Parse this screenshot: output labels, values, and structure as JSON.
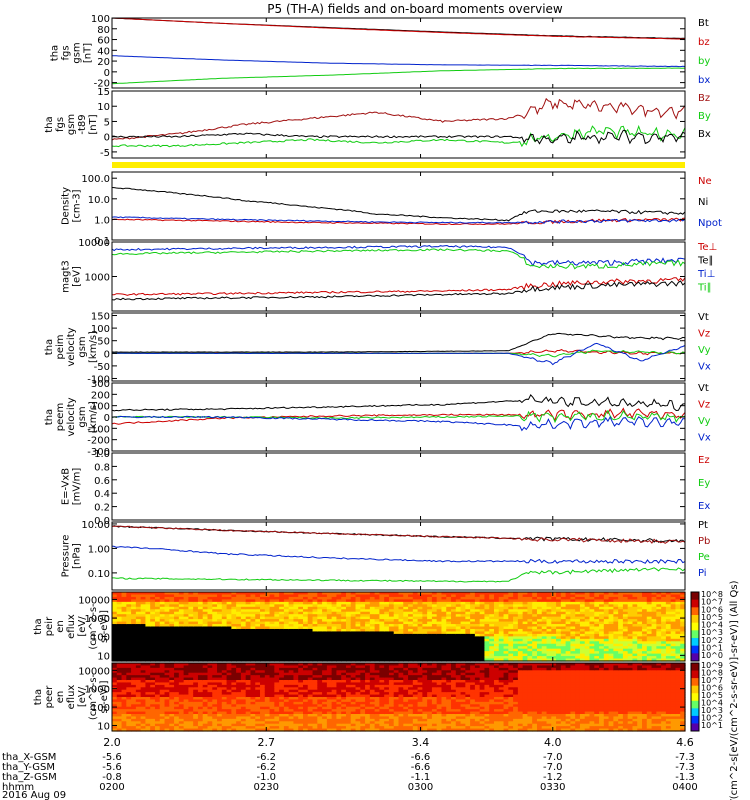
{
  "title": "P5 (TH-A) fields and on-board moments overview",
  "colors": {
    "black": "#000000",
    "red": "#cc0000",
    "darkred": "#a01010",
    "green": "#11cc11",
    "blue": "#0022cc",
    "yellow": "#ffee00"
  },
  "chart_data": [
    {
      "type": "line",
      "id": "fgs-gsm",
      "ylabel": [
        "tha",
        "fgs",
        "gsm",
        "[nT]"
      ],
      "ylim": [
        -30,
        100
      ],
      "yticks": [
        "100",
        "80",
        "60",
        "40",
        "20",
        "0",
        "-20"
      ],
      "yticks_values": [
        100,
        80,
        60,
        40,
        20,
        0,
        -20
      ],
      "x": [
        2.0,
        2.5,
        3.0,
        3.5,
        4.0,
        4.6
      ],
      "series": [
        {
          "name": "Bt",
          "color": "black",
          "values": [
            100,
            90,
            82,
            74,
            67,
            62
          ]
        },
        {
          "name": "bz",
          "color": "red",
          "values": [
            100,
            90,
            81,
            73,
            66,
            61
          ]
        },
        {
          "name": "by",
          "color": "green",
          "values": [
            -22,
            -12,
            -6,
            2,
            6,
            7
          ]
        },
        {
          "name": "bx",
          "color": "blue",
          "values": [
            30,
            22,
            16,
            13,
            12,
            10
          ]
        }
      ]
    },
    {
      "type": "line",
      "id": "fgs-gsm-t89",
      "ylabel": [
        "tha",
        "fgs",
        "gsm",
        "-t89",
        "[nT]"
      ],
      "ylim": [
        -7,
        15
      ],
      "yticks": [
        "15",
        "10",
        "5",
        "0",
        "-5"
      ],
      "yticks_values": [
        15,
        10,
        5,
        0,
        -5
      ],
      "x": [
        2.0,
        2.3,
        2.6,
        2.9,
        3.2,
        3.5,
        3.8,
        4.0,
        4.2,
        4.4,
        4.6
      ],
      "series": [
        {
          "name": "Bz",
          "color": "darkred",
          "values": [
            -1,
            1,
            4,
            6,
            8,
            5,
            6,
            11,
            10,
            9,
            8
          ]
        },
        {
          "name": "By",
          "color": "green",
          "values": [
            -3,
            -3,
            -2,
            -1,
            -2,
            -1,
            -2,
            0,
            2,
            1,
            1
          ]
        },
        {
          "name": "Bx",
          "color": "black",
          "values": [
            0,
            0,
            1,
            0,
            0,
            0,
            0,
            -1,
            0,
            0,
            0
          ]
        }
      ]
    },
    {
      "type": "line",
      "id": "density",
      "log": true,
      "ylabel": [
        "Density",
        "[cm-3]"
      ],
      "ylim": [
        0.1,
        200
      ],
      "yticks": [
        "100.0",
        "10.0",
        "1.0",
        "0.1"
      ],
      "yticks_values": [
        100,
        10,
        1,
        0.1
      ],
      "x": [
        2.0,
        2.3,
        2.6,
        2.9,
        3.2,
        3.5,
        3.8,
        3.9,
        4.2,
        4.6
      ],
      "series": [
        {
          "name": "Ne",
          "color": "red",
          "values": [
            1.0,
            0.9,
            0.8,
            0.7,
            0.65,
            0.6,
            0.6,
            0.7,
            0.9,
            1.0
          ]
        },
        {
          "name": "Ni",
          "color": "black",
          "values": [
            35,
            18,
            8,
            4,
            1.8,
            1.2,
            0.9,
            2.5,
            2.5,
            2.0
          ]
        },
        {
          "name": "Npot",
          "color": "blue",
          "values": [
            1.3,
            1.1,
            0.95,
            0.85,
            0.75,
            0.7,
            0.7,
            0.75,
            0.85,
            0.9
          ]
        }
      ]
    },
    {
      "type": "line",
      "id": "temperature",
      "log": true,
      "ylabel": [
        "magt3",
        "[eV]"
      ],
      "ylim": [
        100,
        10000
      ],
      "yticks": [
        "10000",
        "1000"
      ],
      "yticks_values": [
        10000,
        1000
      ],
      "x": [
        2.0,
        2.5,
        3.0,
        3.5,
        3.8,
        3.9,
        4.2,
        4.6
      ],
      "series": [
        {
          "name": "Te⊥",
          "color": "red",
          "values": [
            300,
            320,
            350,
            380,
            420,
            550,
            700,
            800
          ]
        },
        {
          "name": "Te∥",
          "color": "black",
          "values": [
            220,
            240,
            260,
            300,
            320,
            450,
            550,
            650
          ]
        },
        {
          "name": "Ti⊥",
          "color": "blue",
          "values": [
            6000,
            6500,
            7000,
            7500,
            7000,
            2500,
            2500,
            3000
          ]
        },
        {
          "name": "Ti∥",
          "color": "green",
          "values": [
            4500,
            5000,
            5500,
            6000,
            5500,
            2000,
            2000,
            2500
          ]
        }
      ]
    },
    {
      "type": "line",
      "id": "peim-velocity",
      "ylabel": [
        "tha",
        "peim",
        "velocity",
        "gsm",
        "[km/s]"
      ],
      "ylim": [
        -110,
        160
      ],
      "yticks": [
        "150",
        "100",
        "50",
        "0",
        "-50",
        "-100"
      ],
      "yticks_values": [
        150,
        100,
        50,
        0,
        -50,
        -100
      ],
      "x": [
        2.0,
        2.5,
        3.0,
        3.5,
        3.8,
        4.0,
        4.2,
        4.4,
        4.6
      ],
      "series": [
        {
          "name": "Vt",
          "color": "black",
          "values": [
            5,
            5,
            5,
            8,
            10,
            80,
            70,
            60,
            60
          ]
        },
        {
          "name": "Vz",
          "color": "red",
          "values": [
            0,
            0,
            0,
            0,
            0,
            10,
            5,
            0,
            0
          ]
        },
        {
          "name": "Vy",
          "color": "green",
          "values": [
            0,
            0,
            0,
            0,
            0,
            -10,
            10,
            5,
            0
          ]
        },
        {
          "name": "Vx",
          "color": "blue",
          "values": [
            0,
            0,
            0,
            0,
            0,
            -40,
            40,
            -30,
            30
          ]
        }
      ]
    },
    {
      "type": "line",
      "id": "peem-velocity",
      "ylabel": [
        "tha",
        "peem",
        "velocity",
        "gsm",
        "[km/s]"
      ],
      "ylim": [
        -300,
        300
      ],
      "yticks": [
        "300",
        "200",
        "100",
        "0",
        "-100",
        "-200",
        "-300"
      ],
      "yticks_values": [
        300,
        200,
        100,
        0,
        -100,
        -200,
        -300
      ],
      "x": [
        2.0,
        2.5,
        3.0,
        3.5,
        3.9,
        4.0,
        4.3,
        4.6
      ],
      "series": [
        {
          "name": "Vt",
          "color": "black",
          "values": [
            60,
            70,
            90,
            110,
            150,
            140,
            120,
            100
          ]
        },
        {
          "name": "Vz",
          "color": "red",
          "values": [
            -60,
            -10,
            10,
            20,
            20,
            20,
            30,
            20
          ]
        },
        {
          "name": "Vy",
          "color": "green",
          "values": [
            0,
            0,
            -10,
            0,
            10,
            0,
            10,
            0
          ]
        },
        {
          "name": "Vx",
          "color": "blue",
          "values": [
            0,
            0,
            -20,
            -40,
            -80,
            -60,
            -40,
            -50
          ]
        }
      ]
    },
    {
      "type": "line",
      "id": "e-field",
      "ylabel": [
        "E=-VxB",
        "[mV/m]"
      ],
      "ylim": [
        0,
        1.0
      ],
      "yticks": [
        "1.0",
        "0.8",
        "0.6",
        "0.4",
        "0.2",
        "0.0"
      ],
      "yticks_values": [
        1.0,
        0.8,
        0.6,
        0.4,
        0.2,
        0.0
      ],
      "x": [],
      "series": [
        {
          "name": "Ez",
          "color": "red",
          "values": []
        },
        {
          "name": "Ey",
          "color": "green",
          "values": []
        },
        {
          "name": "Ex",
          "color": "blue",
          "values": []
        }
      ]
    },
    {
      "type": "line",
      "id": "pressure",
      "log": true,
      "ylabel": [
        "Pressure",
        "[nPa]"
      ],
      "ylim": [
        0.02,
        12
      ],
      "yticks": [
        "10.00",
        "1.00",
        "0.10"
      ],
      "yticks_values": [
        10,
        1,
        0.1
      ],
      "x": [
        2.0,
        2.5,
        3.0,
        3.5,
        3.8,
        3.9,
        4.2,
        4.6
      ],
      "series": [
        {
          "name": "Pt",
          "color": "black",
          "values": [
            8,
            5.5,
            4,
            3,
            2.6,
            2.5,
            2.3,
            2.0
          ]
        },
        {
          "name": "Pb",
          "color": "darkred",
          "values": [
            8,
            5.5,
            4,
            3,
            2.6,
            2.4,
            2.2,
            1.9
          ]
        },
        {
          "name": "Pe",
          "color": "green",
          "values": [
            0.06,
            0.055,
            0.05,
            0.045,
            0.045,
            0.1,
            0.12,
            0.15
          ]
        },
        {
          "name": "Pi",
          "color": "blue",
          "values": [
            1.2,
            0.6,
            0.4,
            0.3,
            0.3,
            0.3,
            0.3,
            0.3
          ]
        }
      ]
    },
    {
      "type": "heatmap",
      "id": "peir-spectrogram",
      "log": true,
      "ylabel": [
        "tha",
        "peir",
        "en",
        "eflux",
        "[eV/",
        "(cm^2-s-",
        "sr-eV)]"
      ],
      "ylim": [
        5,
        25000
      ],
      "yticks": [
        "10000",
        "1000",
        "100",
        "10"
      ],
      "yticks_values": [
        10000,
        1000,
        100,
        10
      ],
      "colorbar_ticks": [
        "10^8",
        "10^7",
        "10^6",
        "10^5",
        "10^4",
        "10^3",
        "10^2",
        "10^1",
        "10^0"
      ],
      "colorbar_label": "[eV/(cm^2-s[eV/(cm^2-s-sr-eV)]-sr-eV)] (All Qs)"
    },
    {
      "type": "heatmap",
      "id": "peer-spectrogram",
      "log": true,
      "ylabel": [
        "tha",
        "peer",
        "en",
        "eflux",
        "[eV/",
        "(cm^2-s-",
        "sr-eV)]"
      ],
      "ylim": [
        5,
        25000
      ],
      "yticks": [
        "10000",
        "1000",
        "100",
        "10"
      ],
      "yticks_values": [
        10000,
        1000,
        100,
        10
      ],
      "colorbar_ticks": [
        "10^9",
        "10^8",
        "10^7",
        "10^6",
        "10^5",
        "10^4",
        "10^3",
        "10^2",
        "10^1"
      ]
    }
  ],
  "x_axis": {
    "rows": [
      {
        "label": "tha_X-GSM",
        "values": [
          "-5.6",
          "-6.2",
          "-6.6",
          "-7.0",
          "-7.3"
        ]
      },
      {
        "label": "tha_Y-GSM",
        "values": [
          "-5.6",
          "-6.2",
          "-6.6",
          "-7.0",
          "-7.3"
        ]
      },
      {
        "label": "tha_Z-GSM",
        "values": [
          "-0.8",
          "-1.0",
          "-1.1",
          "-1.2",
          "-1.3"
        ]
      },
      {
        "label": "hhmm",
        "values": [
          "0200",
          "0230",
          "0300",
          "0330",
          "0400"
        ]
      }
    ],
    "top_ticks": [
      "2.0",
      "2.7",
      "3.4",
      "4.0",
      "4.6"
    ],
    "top_tick_values": [
      2.0,
      2.7,
      3.4,
      4.0,
      4.6
    ],
    "date": "2016 Aug 09"
  }
}
